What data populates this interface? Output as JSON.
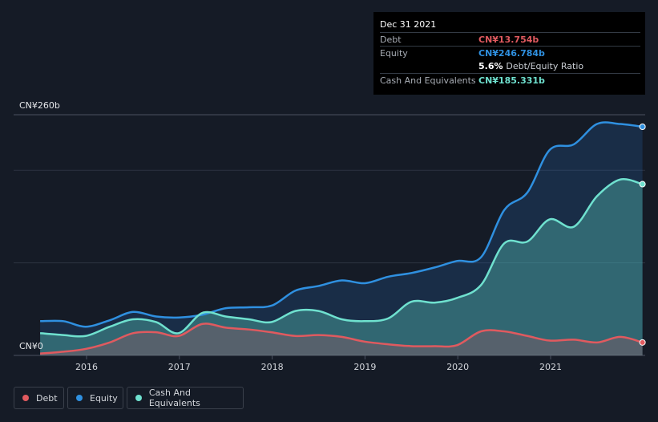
{
  "tooltip": {
    "date": "Dec 31 2021",
    "debt_label": "Debt",
    "debt_value": "CN¥13.754b",
    "equity_label": "Equity",
    "equity_value": "CN¥246.784b",
    "ratio_value": "5.6%",
    "ratio_label": "Debt/Equity Ratio",
    "cash_label": "Cash And Equivalents",
    "cash_value": "CN¥185.331b"
  },
  "legend": {
    "debt": "Debt",
    "equity": "Equity",
    "cash": "Cash And Equivalents"
  },
  "colors": {
    "background": "#151b26",
    "debt": "#e05a5f",
    "equity": "#2f90e0",
    "cash": "#6fe1cf",
    "grid": "#2c3340",
    "tooltip_bg": "#000000"
  },
  "chart_data": {
    "type": "area",
    "title": "",
    "xlabel": "",
    "ylabel": "",
    "ylim": [
      0,
      260
    ],
    "y_unit": "CN¥ billions",
    "y_tick_labels": [
      "CN¥260b",
      "CN¥0"
    ],
    "x_tick_labels": [
      "2016",
      "2017",
      "2018",
      "2019",
      "2020",
      "2021"
    ],
    "x_range": [
      2015.5,
      2022.0
    ],
    "grid": true,
    "legend_position": "bottom-left",
    "series": [
      {
        "name": "Equity",
        "points": [
          [
            2015.5,
            37
          ],
          [
            2015.75,
            37
          ],
          [
            2015.99,
            31
          ],
          [
            2016.25,
            38
          ],
          [
            2016.5,
            47
          ],
          [
            2016.75,
            42
          ],
          [
            2017.0,
            41
          ],
          [
            2017.25,
            44
          ],
          [
            2017.5,
            51
          ],
          [
            2017.75,
            52
          ],
          [
            2018.0,
            54
          ],
          [
            2018.25,
            70
          ],
          [
            2018.5,
            75
          ],
          [
            2018.75,
            81
          ],
          [
            2019.0,
            78
          ],
          [
            2019.25,
            85
          ],
          [
            2019.5,
            89
          ],
          [
            2019.75,
            95
          ],
          [
            2019.99,
            102
          ],
          [
            2020.25,
            106
          ],
          [
            2020.5,
            157
          ],
          [
            2020.75,
            176
          ],
          [
            2020.99,
            222
          ],
          [
            2021.25,
            228
          ],
          [
            2021.5,
            250
          ],
          [
            2021.75,
            250
          ],
          [
            2021.99,
            247
          ]
        ]
      },
      {
        "name": "Cash And Equivalents",
        "points": [
          [
            2015.5,
            24
          ],
          [
            2015.75,
            22
          ],
          [
            2015.99,
            21
          ],
          [
            2016.25,
            31
          ],
          [
            2016.5,
            39
          ],
          [
            2016.75,
            36
          ],
          [
            2016.99,
            24
          ],
          [
            2017.25,
            46
          ],
          [
            2017.5,
            42
          ],
          [
            2017.75,
            39
          ],
          [
            2017.99,
            36
          ],
          [
            2018.25,
            48
          ],
          [
            2018.5,
            48
          ],
          [
            2018.75,
            39
          ],
          [
            2018.99,
            37
          ],
          [
            2019.25,
            40
          ],
          [
            2019.5,
            58
          ],
          [
            2019.75,
            57
          ],
          [
            2019.99,
            62
          ],
          [
            2020.25,
            76
          ],
          [
            2020.5,
            121
          ],
          [
            2020.75,
            123
          ],
          [
            2020.99,
            147
          ],
          [
            2021.25,
            139
          ],
          [
            2021.5,
            172
          ],
          [
            2021.75,
            190
          ],
          [
            2021.99,
            185
          ]
        ]
      },
      {
        "name": "Debt",
        "points": [
          [
            2015.5,
            2
          ],
          [
            2015.75,
            4
          ],
          [
            2015.99,
            7
          ],
          [
            2016.25,
            14
          ],
          [
            2016.5,
            24
          ],
          [
            2016.75,
            25
          ],
          [
            2016.99,
            21
          ],
          [
            2017.25,
            34
          ],
          [
            2017.5,
            30
          ],
          [
            2017.75,
            28
          ],
          [
            2017.99,
            25
          ],
          [
            2018.25,
            21
          ],
          [
            2018.5,
            22
          ],
          [
            2018.75,
            20
          ],
          [
            2018.99,
            15
          ],
          [
            2019.25,
            12
          ],
          [
            2019.5,
            10
          ],
          [
            2019.75,
            10
          ],
          [
            2019.99,
            11
          ],
          [
            2020.25,
            26
          ],
          [
            2020.5,
            26
          ],
          [
            2020.75,
            21
          ],
          [
            2020.99,
            16
          ],
          [
            2021.25,
            17
          ],
          [
            2021.5,
            14
          ],
          [
            2021.75,
            20
          ],
          [
            2021.99,
            14
          ]
        ]
      }
    ]
  }
}
